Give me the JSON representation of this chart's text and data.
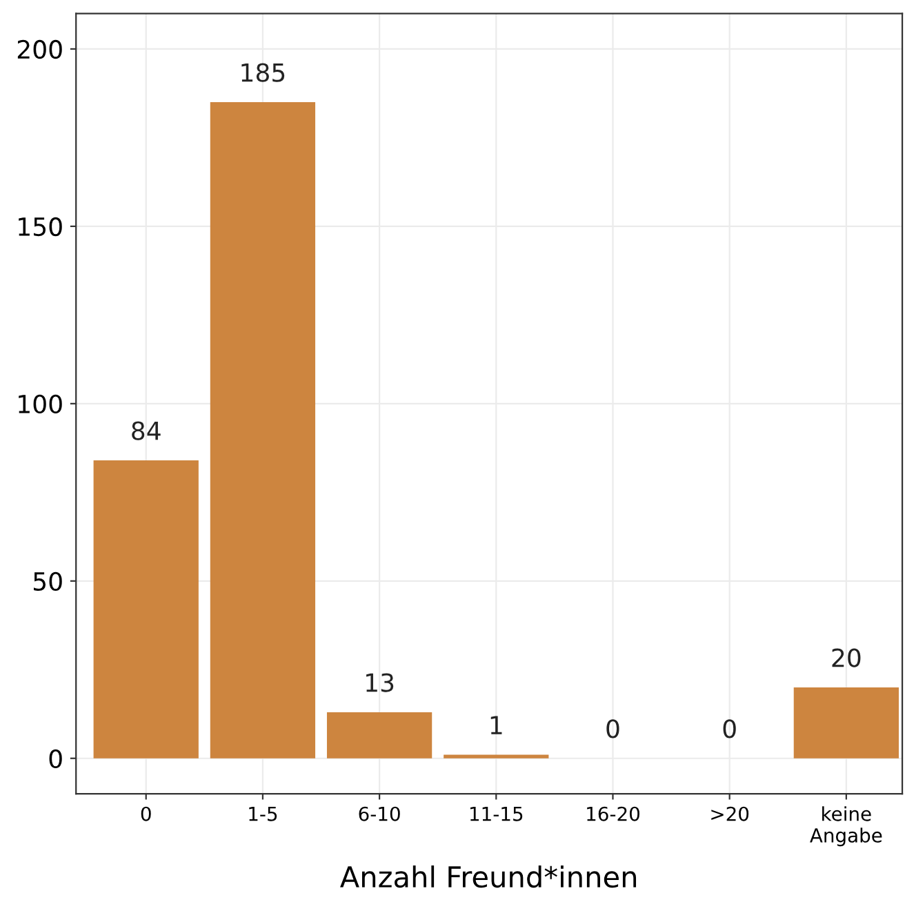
{
  "chart_data": {
    "type": "bar",
    "xlabel": "Anzahl Freund*innen",
    "categories": [
      "0",
      "1-5",
      "6-10",
      "11-15",
      "16-20",
      ">20",
      "keine\nAngabe"
    ],
    "values": [
      84,
      185,
      13,
      1,
      0,
      0,
      20
    ],
    "color": "#cd853f",
    "ylim": [
      -10,
      210
    ],
    "yticks": [
      0,
      50,
      100,
      150,
      200
    ],
    "grid": true,
    "data_labels": true
  }
}
